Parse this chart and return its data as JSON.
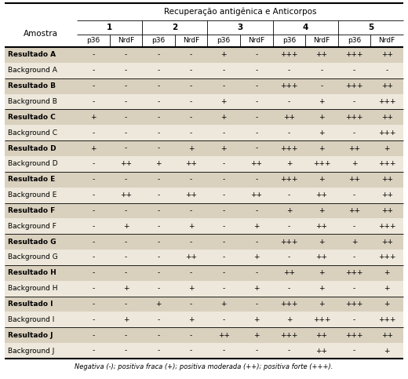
{
  "title": "Recuperação antigênica e Anticorpos",
  "col_header_level1": [
    "1",
    "2",
    "3",
    "4",
    "5"
  ],
  "col_header_level2": [
    "p36",
    "NrdF",
    "p36",
    "NrdF",
    "p36",
    "NrdF",
    "p36",
    "NrdF",
    "p36",
    "NrdF"
  ],
  "row_labels": [
    "Resultado A",
    "Background A",
    "Resultado B",
    "Background B",
    "Resultado C",
    "Background C",
    "Resultado D",
    "Background D",
    "Resultado E",
    "Background E",
    "Resultado F",
    "Background F",
    "Resultado G",
    "Background G",
    "Resultado H",
    "Background H",
    "Resultado I",
    "Background I",
    "Resultado J",
    "Background J"
  ],
  "cell_data": [
    [
      "-",
      "-",
      "-",
      "-",
      "+",
      "-",
      "+++",
      "++",
      "+++",
      "++"
    ],
    [
      "-",
      "-",
      "-",
      "-",
      "-",
      "-",
      "-",
      "-",
      "-",
      "-"
    ],
    [
      "-",
      "-",
      "-",
      "-",
      "-",
      "-",
      "+++",
      "-",
      "+++",
      "++"
    ],
    [
      "-",
      "-",
      "-",
      "-",
      "+",
      "-",
      "-",
      "+",
      "-",
      "+++"
    ],
    [
      "+",
      "-",
      "-",
      "-",
      "+",
      "-",
      "++",
      "+",
      "+++",
      "++"
    ],
    [
      "-",
      "-",
      "-",
      "-",
      "-",
      "-",
      "-",
      "+",
      "-",
      "+++"
    ],
    [
      "+",
      "-",
      "-",
      "+",
      "+",
      "-",
      "+++",
      "+",
      "++",
      "+"
    ],
    [
      "-",
      "++",
      "+",
      "++",
      "-",
      "++",
      "+",
      "+++",
      "+",
      "+++"
    ],
    [
      "-",
      "-",
      "-",
      "-",
      "-",
      "-",
      "+++",
      "+",
      "++",
      "++"
    ],
    [
      "-",
      "++",
      "-",
      "++",
      "-",
      "++",
      "-",
      "++",
      "-",
      "++"
    ],
    [
      "-",
      "-",
      "-",
      "-",
      "-",
      "-",
      "+",
      "+",
      "++",
      "++"
    ],
    [
      "-",
      "+",
      "-",
      "+",
      "-",
      "+",
      "-",
      "++",
      "-",
      "+++"
    ],
    [
      "-",
      "-",
      "-",
      "-",
      "-",
      "-",
      "+++",
      "+",
      "+",
      "++"
    ],
    [
      "-",
      "-",
      "-",
      "++",
      "-",
      "+",
      "-",
      "++",
      "-",
      "+++"
    ],
    [
      "-",
      "-",
      "-",
      "-",
      "-",
      "-",
      "++",
      "+",
      "+++",
      "+"
    ],
    [
      "-",
      "+",
      "-",
      "+",
      "-",
      "+",
      "-",
      "+",
      "-",
      "+"
    ],
    [
      "-",
      "-",
      "+",
      "-",
      "+",
      "-",
      "+++",
      "+",
      "+++",
      "+"
    ],
    [
      "-",
      "+",
      "-",
      "+",
      "-",
      "+",
      "+",
      "+++",
      "-",
      "+++"
    ],
    [
      "-",
      "-",
      "-",
      "-",
      "++",
      "+",
      "+++",
      "++",
      "+++",
      "++"
    ],
    [
      "-",
      "-",
      "-",
      "-",
      "-",
      "-",
      "-",
      "++",
      "-",
      "+"
    ]
  ],
  "resultado_rows": [
    0,
    2,
    4,
    6,
    8,
    10,
    12,
    14,
    16,
    18
  ],
  "background_rows": [
    1,
    3,
    5,
    7,
    9,
    11,
    13,
    15,
    17,
    19
  ],
  "resultado_bg": "#d9d0be",
  "background_bg": "#ede8db",
  "bold_result_rows": true,
  "footer_text": "Negativa (-); positiva fraca (+); positiva moderada (++); positiva forte (+++).",
  "figsize": [
    5.2,
    4.83
  ],
  "dpi": 100
}
